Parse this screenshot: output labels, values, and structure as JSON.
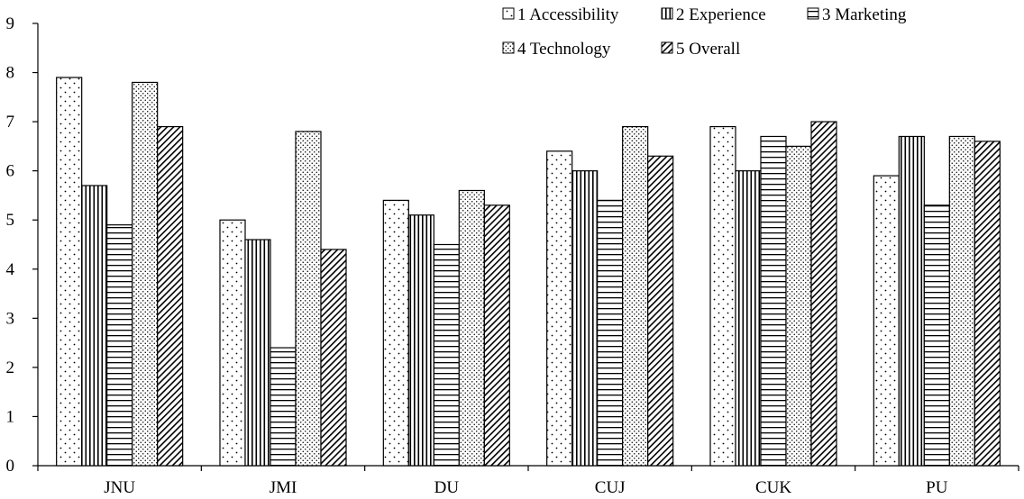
{
  "chart_data": {
    "type": "bar",
    "categories": [
      "JNU",
      "JMI",
      "DU",
      "CUJ",
      "CUK",
      "PU"
    ],
    "series": [
      {
        "name": "1 Accessibility",
        "pattern": "dots",
        "values": [
          7.9,
          5.0,
          5.4,
          6.4,
          6.9,
          5.9
        ]
      },
      {
        "name": "2 Experience",
        "pattern": "vertical-lines",
        "values": [
          5.7,
          4.6,
          5.1,
          6.0,
          6.0,
          6.7
        ]
      },
      {
        "name": "3 Marketing",
        "pattern": "horizontal-lines",
        "values": [
          4.9,
          2.4,
          4.5,
          5.4,
          6.7,
          5.3
        ]
      },
      {
        "name": "4 Technology",
        "pattern": "dense-dots",
        "values": [
          7.8,
          6.8,
          5.6,
          6.9,
          6.5,
          6.7
        ]
      },
      {
        "name": "5 Overall",
        "pattern": "diagonal-lines",
        "values": [
          6.9,
          4.4,
          5.3,
          6.3,
          7.0,
          6.6
        ]
      }
    ],
    "yticks": [
      "0",
      "1",
      "2",
      "3",
      "4",
      "5",
      "6",
      "7",
      "8",
      "9"
    ],
    "ylim": [
      0,
      9
    ],
    "grid": false,
    "legend_position": "top-right"
  }
}
